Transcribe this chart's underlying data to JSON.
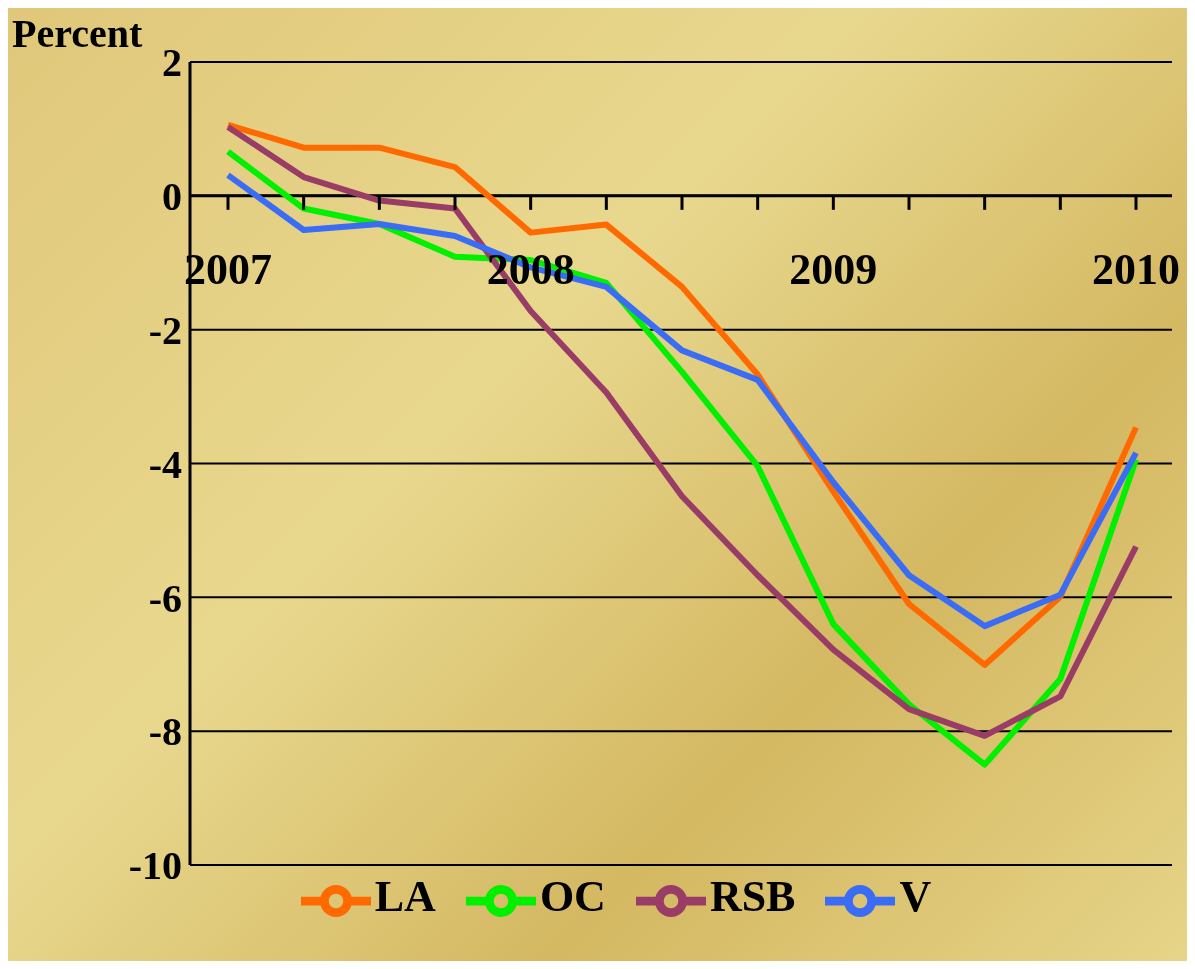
{
  "chart_data": {
    "type": "line",
    "ylabel": "Percent",
    "categories": [
      "2007",
      null,
      null,
      null,
      "2008",
      null,
      null,
      null,
      "2009",
      null,
      null,
      null,
      "2010"
    ],
    "series": [
      {
        "name": "LA",
        "color": "#ff6a00",
        "values": [
          1.06,
          0.72,
          0.72,
          0.43,
          -0.55,
          -0.43,
          -1.36,
          -2.67,
          -4.42,
          -6.1,
          -7.01,
          -5.99,
          -3.46
        ]
      },
      {
        "name": "OC",
        "color": "#00f000",
        "values": [
          0.66,
          -0.19,
          -0.42,
          -0.91,
          -0.96,
          -1.3,
          -2.63,
          -4.04,
          -6.4,
          -7.6,
          -8.5,
          -7.22,
          -3.94
        ]
      },
      {
        "name": "RSB",
        "color": "#993d66",
        "values": [
          1.03,
          0.28,
          -0.07,
          -0.19,
          -1.72,
          -2.94,
          -4.49,
          -5.67,
          -6.78,
          -7.67,
          -8.07,
          -7.48,
          -5.24
        ]
      },
      {
        "name": "V",
        "color": "#3b6cf5",
        "values": [
          0.31,
          -0.51,
          -0.42,
          -0.6,
          -1.07,
          -1.36,
          -2.31,
          -2.75,
          -4.28,
          -5.67,
          -6.43,
          -5.96,
          -3.84
        ]
      }
    ],
    "ylim": [
      -10,
      2
    ],
    "yticks": [
      -10,
      -8,
      -6,
      -4,
      -2,
      0,
      2
    ],
    "grid": "y",
    "legend": "bottom",
    "marker": "none",
    "line_style": "solid"
  }
}
